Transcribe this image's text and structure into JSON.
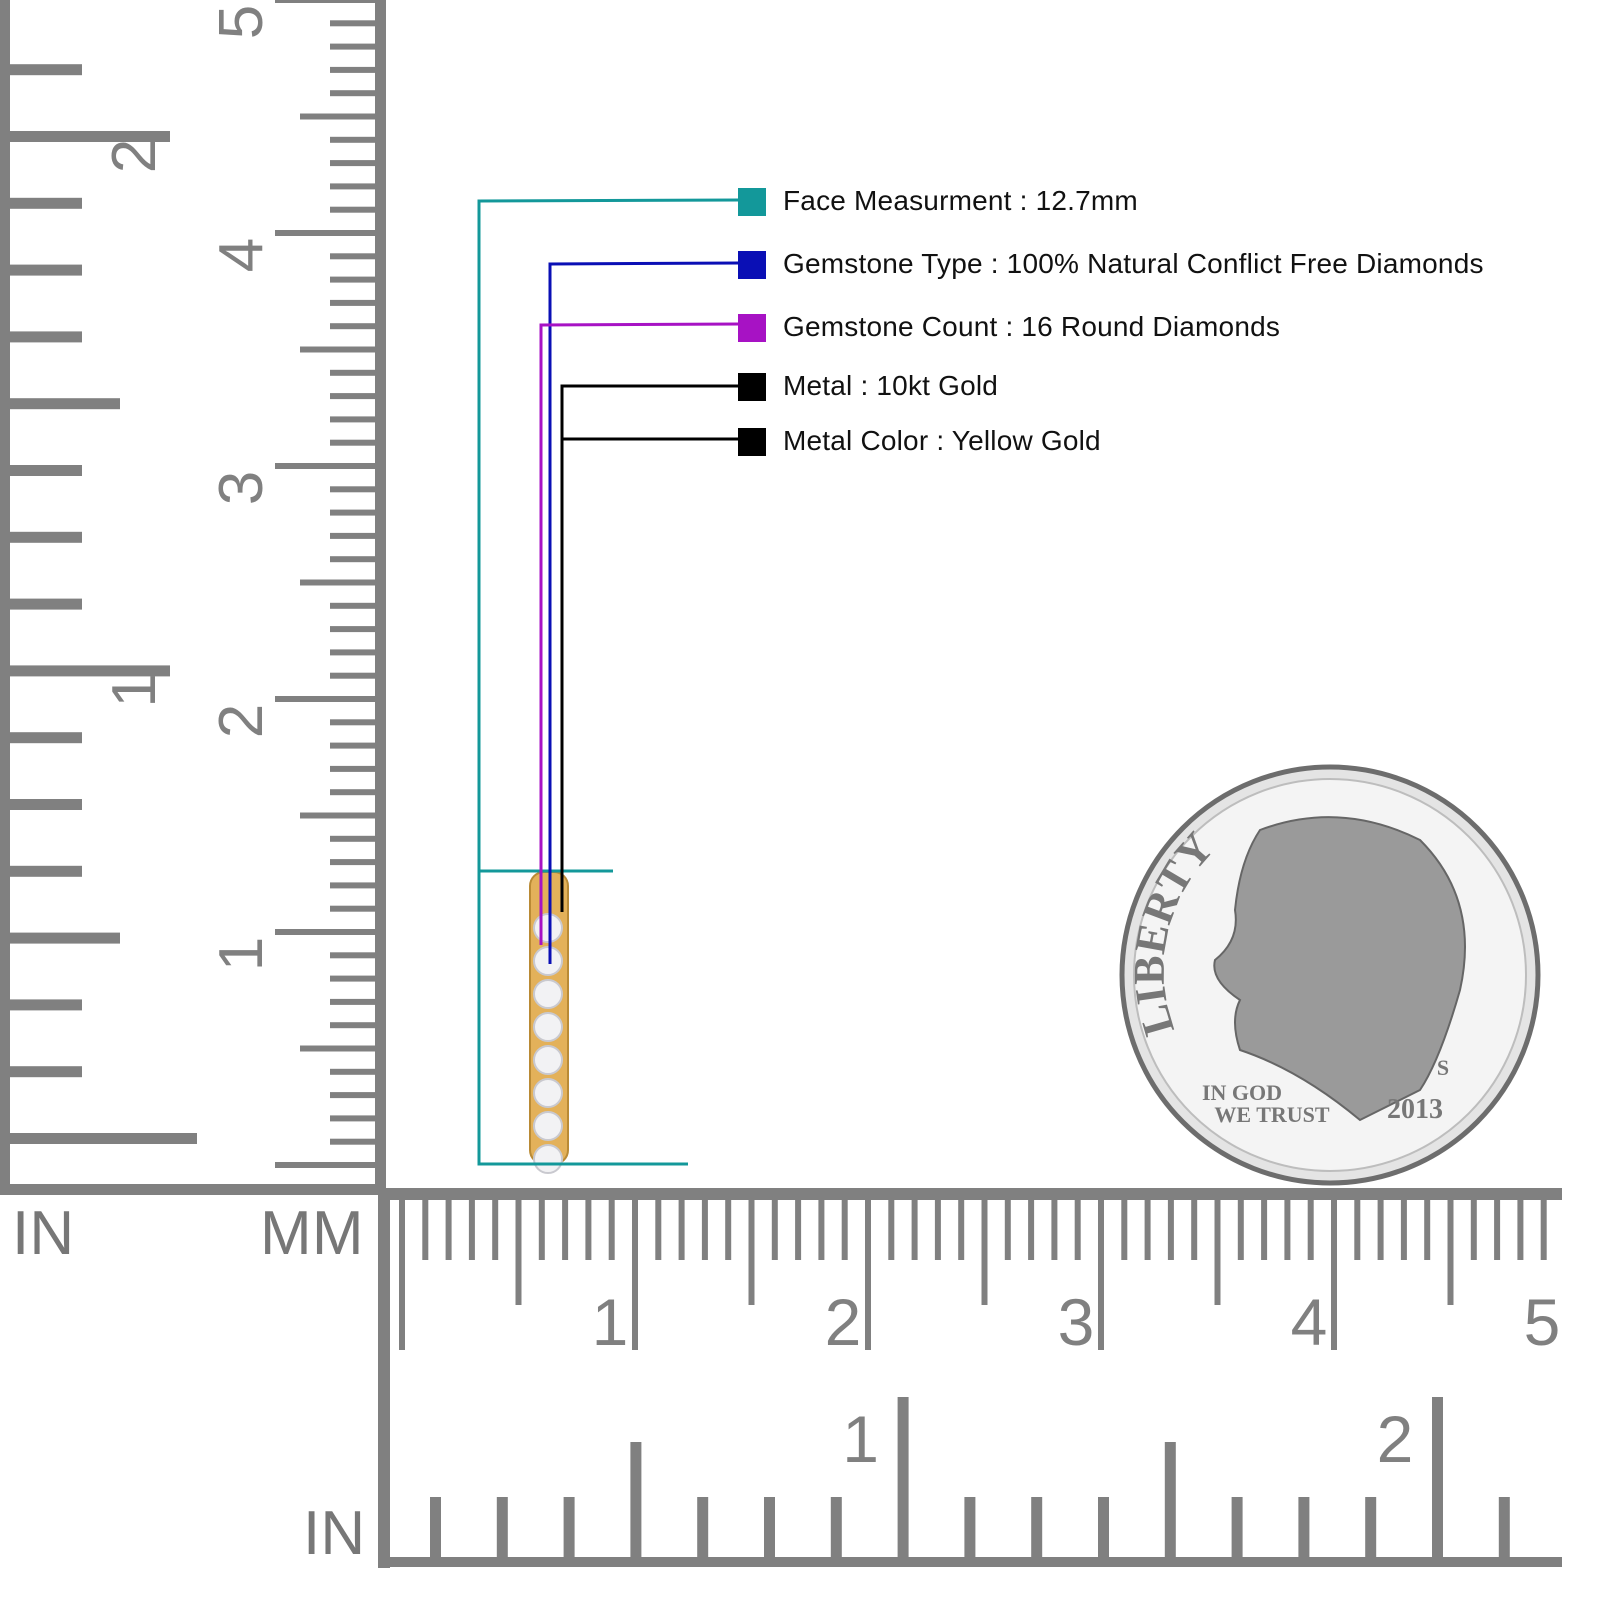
{
  "specs": [
    {
      "label": "Face Measurment : 12.7mm",
      "color": "#13989a"
    },
    {
      "label": "Gemstone Type : 100% Natural Conflict Free Diamonds",
      "color": "#0a0fb5"
    },
    {
      "label": "Gemstone Count : 16 Round Diamonds",
      "color": "#a712c4"
    },
    {
      "label": "Metal : 10kt Gold",
      "color": "#000000"
    },
    {
      "label": "Metal Color : Yellow Gold",
      "color": "#000000"
    }
  ],
  "rulers": {
    "left_units_label": "IN",
    "mm_label": "MM",
    "bottom_units_label": "IN",
    "color": "#808080",
    "cm_ticks": [
      "1",
      "2",
      "3",
      "4",
      "5"
    ],
    "inch_ticks": [
      "1",
      "2"
    ]
  },
  "coin": {
    "legend": "LIBERTY",
    "motto_line1": "IN GOD",
    "motto_line2": "WE TRUST",
    "year": "2013",
    "mint_mark": "S"
  },
  "product": {
    "metal_color": "#e3b15a",
    "stone_count": 16
  }
}
